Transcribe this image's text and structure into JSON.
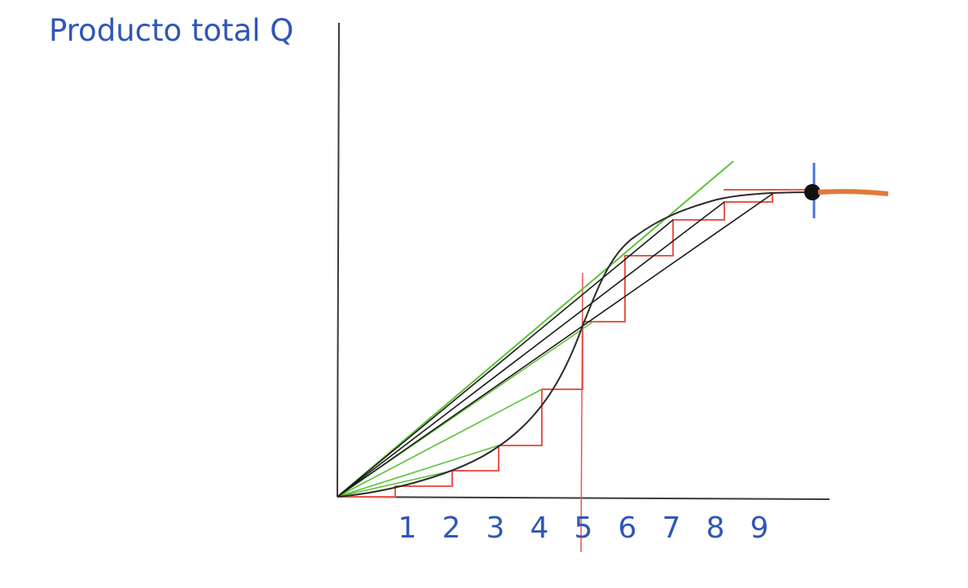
{
  "y_axis_label": "Producto total Q",
  "x_ticks": [
    "1",
    "2",
    "3",
    "4",
    "5",
    "6",
    "7",
    "8",
    "9"
  ],
  "colors": {
    "label_blue": "#2f56b8",
    "axis": "#3a3a3a",
    "curve": "#2b2b2b",
    "step": "#e8584e",
    "tangent_green": "#5cc23a",
    "chord_black": "#1a1a1a",
    "marker": "#111111",
    "marker_bar": "#4a74d8",
    "tail": "#e07a3a"
  }
}
